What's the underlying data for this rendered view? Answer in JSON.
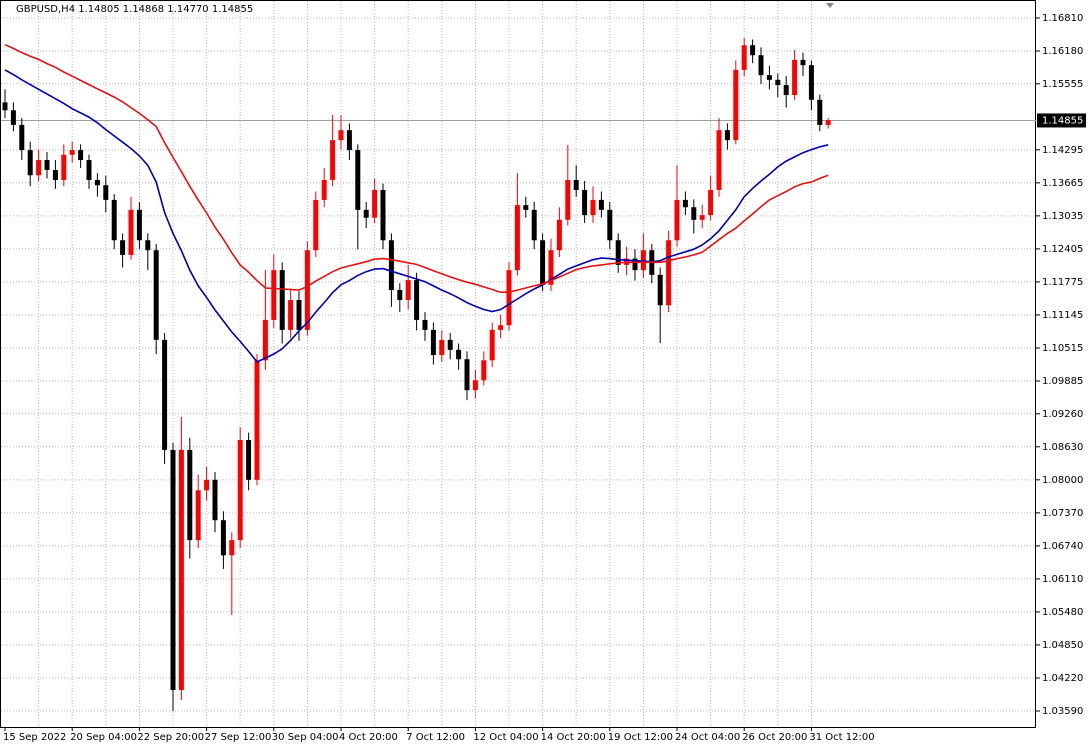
{
  "chart_data": {
    "type": "candlestick",
    "title": "GBPUSD,H4  1.14805 1.14868 1.14770 1.14855",
    "categories": [
      "15 Sep 2022",
      null,
      null,
      null,
      null,
      null,
      null,
      null,
      "20 Sep 04:00",
      null,
      null,
      null,
      null,
      null,
      null,
      null,
      "22 Sep 20:00",
      null,
      null,
      null,
      null,
      null,
      null,
      null,
      "27 Sep 12:00",
      null,
      null,
      null,
      null,
      null,
      null,
      null,
      "30 Sep 04:00",
      null,
      null,
      null,
      null,
      null,
      null,
      null,
      "4 Oct 20:00",
      null,
      null,
      null,
      null,
      null,
      null,
      null,
      "7 Oct 12:00",
      null,
      null,
      null,
      null,
      null,
      null,
      null,
      "12 Oct 04:00",
      null,
      null,
      null,
      null,
      null,
      null,
      null,
      "14 Oct 20:00",
      null,
      null,
      null,
      null,
      null,
      null,
      null,
      "19 Oct 12:00",
      null,
      null,
      null,
      null,
      null,
      null,
      null,
      "24 Oct 04:00",
      null,
      null,
      null,
      null,
      null,
      null,
      null,
      "26 Oct 20:00",
      null,
      null,
      null,
      null,
      null,
      null,
      null,
      "31 Oct 12:00",
      null,
      null
    ],
    "open": [
      1.152,
      1.1505,
      1.1477,
      1.1429,
      1.1381,
      1.141,
      1.1391,
      1.1372,
      1.142,
      1.1429,
      1.141,
      1.1372,
      1.1362,
      1.1334,
      1.1257,
      1.1229,
      1.1315,
      1.1257,
      1.1238,
      1.1067,
      1.0857,
      1.0399,
      1.0857,
      1.0685,
      1.078,
      1.08,
      1.0723,
      1.0656,
      1.0685,
      1.0876,
      1.08,
      1.1028,
      1.1105,
      1.12,
      1.1086,
      1.1143,
      1.1086,
      1.1238,
      1.1334,
      1.1372,
      1.1448,
      1.1467,
      1.1429,
      1.1315,
      1.13,
      1.1353,
      1.1257,
      1.1162,
      1.1143,
      1.1181,
      1.1105,
      1.1086,
      1.1038,
      1.1067,
      1.1048,
      1.103,
      1.0971,
      1.099,
      1.1028,
      1.1086,
      1.1095,
      1.12,
      1.1324,
      1.1315,
      1.1257,
      1.1172,
      1.1238,
      1.1296,
      1.1372,
      1.1353,
      1.1305,
      1.1334,
      1.1315,
      1.1257,
      1.121,
      1.1222,
      1.12,
      1.1238,
      1.1191,
      1.1133,
      1.1257,
      1.1334,
      1.132,
      1.1296,
      1.1305,
      1.1353,
      1.1467,
      1.1448,
      1.1582,
      1.1629,
      1.161,
      1.1572,
      1.1563,
      1.1553,
      1.1534,
      1.1601,
      1.1591,
      1.1525,
      1.1477
    ],
    "high": [
      1.1545,
      1.152,
      1.149,
      1.1445,
      1.143,
      1.1425,
      1.141,
      1.144,
      1.1445,
      1.144,
      1.142,
      1.1385,
      1.138,
      1.1345,
      1.127,
      1.134,
      1.133,
      1.127,
      1.125,
      1.108,
      1.087,
      1.092,
      1.088,
      1.081,
      1.0825,
      1.0815,
      1.074,
      1.07,
      1.09,
      1.089,
      1.104,
      1.12,
      1.123,
      1.1215,
      1.1165,
      1.116,
      1.1255,
      1.135,
      1.1395,
      1.1496,
      1.1496,
      1.148,
      1.144,
      1.133,
      1.1375,
      1.1365,
      1.127,
      1.1175,
      1.121,
      1.1195,
      1.112,
      1.11,
      1.1085,
      1.108,
      1.106,
      1.1045,
      1.101,
      1.1045,
      1.11,
      1.1115,
      1.1215,
      1.1385,
      1.134,
      1.133,
      1.127,
      1.126,
      1.132,
      1.1439,
      1.14,
      1.137,
      1.136,
      1.135,
      1.133,
      1.127,
      1.1245,
      1.124,
      1.127,
      1.125,
      1.1205,
      1.1275,
      1.14,
      1.135,
      1.1335,
      1.1325,
      1.138,
      1.149,
      1.148,
      1.16,
      1.1643,
      1.164,
      1.1625,
      1.159,
      1.1575,
      1.157,
      1.162,
      1.1615,
      1.16,
      1.1535,
      1.149
    ],
    "low": [
      1.149,
      1.1465,
      1.141,
      1.136,
      1.137,
      1.1375,
      1.1355,
      1.136,
      1.1405,
      1.1395,
      1.1355,
      1.134,
      1.131,
      1.124,
      1.1205,
      1.122,
      1.124,
      1.12,
      1.104,
      1.083,
      1.0359,
      1.038,
      1.065,
      1.067,
      1.076,
      1.07,
      1.063,
      1.0542,
      1.067,
      1.078,
      1.079,
      1.101,
      1.109,
      1.106,
      1.107,
      1.1065,
      1.1075,
      1.1225,
      1.132,
      1.136,
      1.143,
      1.141,
      1.124,
      1.128,
      1.129,
      1.124,
      1.113,
      1.112,
      1.1125,
      1.1085,
      1.1065,
      1.102,
      1.1025,
      1.103,
      1.101,
      1.0952,
      1.0955,
      1.098,
      1.1015,
      1.107,
      1.1085,
      1.119,
      1.13,
      1.124,
      1.116,
      1.116,
      1.1225,
      1.1285,
      1.134,
      1.129,
      1.129,
      1.13,
      1.124,
      1.1195,
      1.119,
      1.118,
      1.1185,
      1.1175,
      1.1061,
      1.112,
      1.1245,
      1.1305,
      1.127,
      1.128,
      1.1295,
      1.134,
      1.143,
      1.144,
      1.157,
      1.1595,
      1.1555,
      1.1545,
      1.153,
      1.151,
      1.1525,
      1.157,
      1.1505,
      1.1465,
      1.147
    ],
    "close": [
      1.1505,
      1.1477,
      1.1429,
      1.1381,
      1.141,
      1.1391,
      1.1372,
      1.142,
      1.1429,
      1.141,
      1.1372,
      1.1362,
      1.1334,
      1.1257,
      1.1229,
      1.1315,
      1.1257,
      1.1238,
      1.1067,
      1.0857,
      1.0399,
      1.0857,
      1.0685,
      1.078,
      1.08,
      1.0723,
      1.0656,
      1.0685,
      1.0876,
      1.08,
      1.1028,
      1.1105,
      1.12,
      1.1086,
      1.1143,
      1.1086,
      1.1238,
      1.1334,
      1.1372,
      1.1448,
      1.1467,
      1.1429,
      1.1315,
      1.13,
      1.1353,
      1.1257,
      1.1162,
      1.1143,
      1.1181,
      1.1105,
      1.1086,
      1.1038,
      1.1067,
      1.1048,
      1.103,
      1.0971,
      1.099,
      1.1028,
      1.1086,
      1.1095,
      1.12,
      1.1324,
      1.1315,
      1.1257,
      1.1172,
      1.1238,
      1.1296,
      1.1372,
      1.1353,
      1.1305,
      1.1334,
      1.1315,
      1.1257,
      1.121,
      1.1222,
      1.12,
      1.1238,
      1.1191,
      1.1133,
      1.1257,
      1.1334,
      1.132,
      1.1296,
      1.1305,
      1.1353,
      1.1467,
      1.1448,
      1.1582,
      1.1629,
      1.161,
      1.1572,
      1.1563,
      1.1553,
      1.1534,
      1.1601,
      1.1591,
      1.1525,
      1.1477,
      1.1486
    ],
    "up_color": "#ff0000",
    "down_color": "#000000",
    "series": [
      {
        "color": "#0000b4",
        "values": [
          1.1582,
          1.1573,
          1.1563,
          1.1554,
          1.1545,
          1.1536,
          1.1527,
          1.1518,
          1.1508,
          1.15,
          1.1492,
          1.1481,
          1.1468,
          1.1456,
          1.1444,
          1.1432,
          1.1418,
          1.14,
          1.1368,
          1.131,
          1.127,
          1.1237,
          1.12,
          1.117,
          1.1148,
          1.1124,
          1.1103,
          1.1082,
          1.1064,
          1.1045,
          1.1025,
          1.1032,
          1.104,
          1.105,
          1.1066,
          1.1084,
          1.11,
          1.112,
          1.1138,
          1.1157,
          1.1172,
          1.118,
          1.119,
          1.1197,
          1.1202,
          1.1203,
          1.1198,
          1.1193,
          1.1188,
          1.1183,
          1.1178,
          1.117,
          1.1162,
          1.1155,
          1.1147,
          1.1138,
          1.1131,
          1.1125,
          1.1121,
          1.1125,
          1.1135,
          1.1145,
          1.1155,
          1.1164,
          1.1172,
          1.1182,
          1.1192,
          1.1202,
          1.1208,
          1.1214,
          1.122,
          1.1223,
          1.1222,
          1.122,
          1.1219,
          1.1218,
          1.1217,
          1.1216,
          1.1218,
          1.1225,
          1.123,
          1.1235,
          1.124,
          1.1248,
          1.126,
          1.1275,
          1.1295,
          1.1315,
          1.134,
          1.1356,
          1.137,
          1.1383,
          1.1397,
          1.1408,
          1.1416,
          1.1424,
          1.143,
          1.1435,
          1.1439
        ]
      },
      {
        "color": "#e81010",
        "values": [
          1.163,
          1.1623,
          1.1615,
          1.1608,
          1.1602,
          1.1594,
          1.1587,
          1.1578,
          1.157,
          1.1562,
          1.1554,
          1.1546,
          1.1538,
          1.153,
          1.1521,
          1.151,
          1.1499,
          1.1487,
          1.1474,
          1.1443,
          1.1415,
          1.1388,
          1.136,
          1.1334,
          1.1309,
          1.1282,
          1.1259,
          1.1233,
          1.121,
          1.1196,
          1.118,
          1.1166,
          1.1165,
          1.1164,
          1.1163,
          1.1162,
          1.1169,
          1.1179,
          1.1188,
          1.1197,
          1.1204,
          1.1208,
          1.1212,
          1.1216,
          1.1221,
          1.1222,
          1.122,
          1.1217,
          1.1214,
          1.1211,
          1.1205,
          1.1199,
          1.1193,
          1.1187,
          1.1182,
          1.1177,
          1.1173,
          1.1168,
          1.1163,
          1.1158,
          1.1158,
          1.1162,
          1.1166,
          1.117,
          1.1174,
          1.118,
          1.1187,
          1.1194,
          1.1201,
          1.1205,
          1.1208,
          1.121,
          1.1212,
          1.1214,
          1.1215,
          1.1215,
          1.1215,
          1.1215,
          1.1215,
          1.1218,
          1.1222,
          1.1225,
          1.1229,
          1.1234,
          1.1246,
          1.1258,
          1.127,
          1.128,
          1.1294,
          1.1307,
          1.1321,
          1.1334,
          1.1342,
          1.135,
          1.1359,
          1.1365,
          1.1368,
          1.1375,
          1.1381
        ]
      }
    ],
    "last_price": 1.14855,
    "ylim": [
      1.03285,
      1.17153
    ],
    "yticks": [
      {
        "value": 1.1681,
        "label": "1.16810"
      },
      {
        "value": 1.1618,
        "label": "1.16180"
      },
      {
        "value": 1.15555,
        "label": "1.15555"
      },
      {
        "value": 1.14295,
        "label": "1.14295"
      },
      {
        "value": 1.13665,
        "label": "1.13665"
      },
      {
        "value": 1.13035,
        "label": "1.13035"
      },
      {
        "value": 1.12405,
        "label": "1.12405"
      },
      {
        "value": 1.11775,
        "label": "1.11775"
      },
      {
        "value": 1.11145,
        "label": "1.11145"
      },
      {
        "value": 1.10515,
        "label": "1.10515"
      },
      {
        "value": 1.09885,
        "label": "1.09885"
      },
      {
        "value": 1.0926,
        "label": "1.09260"
      },
      {
        "value": 1.0863,
        "label": "1.08630"
      },
      {
        "value": 1.08,
        "label": "1.08000"
      },
      {
        "value": 1.0737,
        "label": "1.07370"
      },
      {
        "value": 1.0674,
        "label": "1.06740"
      },
      {
        "value": 1.0611,
        "label": "1.06110"
      },
      {
        "value": 1.0548,
        "label": "1.05480"
      },
      {
        "value": 1.0485,
        "label": "1.04850"
      },
      {
        "value": 1.0422,
        "label": "1.04220"
      },
      {
        "value": 1.0359,
        "label": "1.03590"
      }
    ],
    "grid": true
  }
}
